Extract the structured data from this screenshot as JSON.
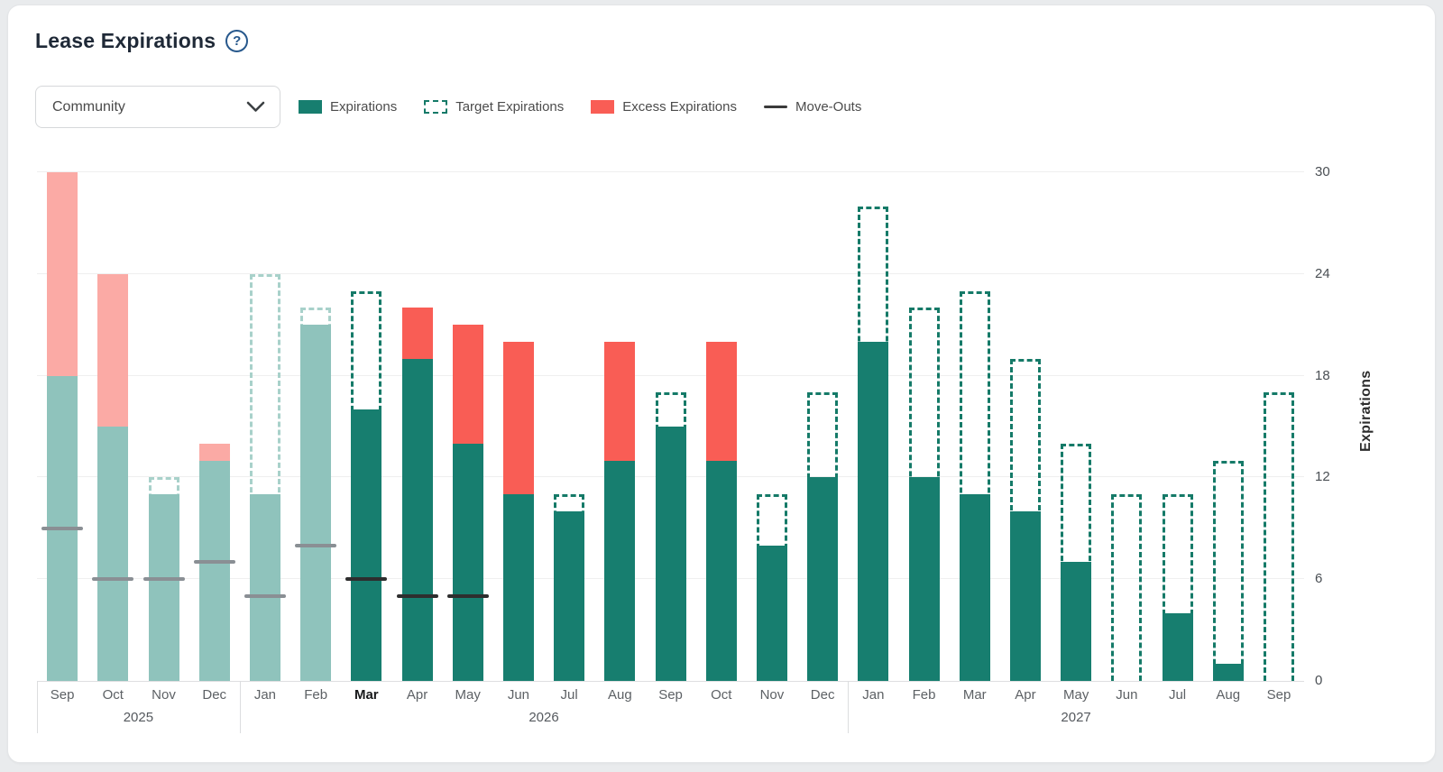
{
  "header": {
    "title": "Lease Expirations",
    "help_icon": "help-circle",
    "help_glyph": "?"
  },
  "filter": {
    "selected": "Community"
  },
  "legend": [
    {
      "id": "expirations",
      "label": "Expirations",
      "swatch": "solid-teal"
    },
    {
      "id": "target-expirations",
      "label": "Target Expirations",
      "swatch": "dashed-teal"
    },
    {
      "id": "excess-expirations",
      "label": "Excess Expirations",
      "swatch": "solid-red"
    },
    {
      "id": "move-outs",
      "label": "Move-Outs",
      "swatch": "dark-line"
    }
  ],
  "colors": {
    "teal": "#177e6f",
    "teal_faded": "#8fc3bc",
    "red": "#f95d55",
    "red_faded": "#fbaaa5",
    "target_dash": "#157a68",
    "target_dash_faded": "#a8d1ca",
    "moveout_active": "#2e2e2e",
    "moveout_past": "#8a8f94",
    "gridline": "#efefef",
    "title_text": "#1f2937",
    "help_icon_navy": "#27588c"
  },
  "chart_data": {
    "type": "bar",
    "title": "Lease Expirations",
    "ylabel": "Expirations",
    "yticks": [
      0,
      6,
      12,
      18,
      24,
      30
    ],
    "ylim": [
      0,
      31
    ],
    "grid": true,
    "legend_position": "top",
    "current_month": "Mar 2026",
    "x_groups": [
      {
        "year": "2025",
        "months": 4
      },
      {
        "year": "2026",
        "months": 12
      },
      {
        "year": "2027",
        "months": 9
      }
    ],
    "months": [
      {
        "label": "Sep",
        "year": 2025,
        "expirations": 30,
        "target": 18,
        "excess": 12,
        "move_outs": 9,
        "state": "past"
      },
      {
        "label": "Oct",
        "year": 2025,
        "expirations": 24,
        "target": 15,
        "excess": 9,
        "move_outs": 6,
        "state": "past"
      },
      {
        "label": "Nov",
        "year": 2025,
        "expirations": 11,
        "target": 12,
        "excess": 0,
        "move_outs": 6,
        "state": "past"
      },
      {
        "label": "Dec",
        "year": 2025,
        "expirations": 14,
        "target": 13,
        "excess": 1,
        "move_outs": 7,
        "state": "past"
      },
      {
        "label": "Jan",
        "year": 2026,
        "expirations": 11,
        "target": 24,
        "excess": 0,
        "move_outs": 5,
        "state": "past"
      },
      {
        "label": "Feb",
        "year": 2026,
        "expirations": 21,
        "target": 22,
        "excess": 0,
        "move_outs": 8,
        "state": "past"
      },
      {
        "label": "Mar",
        "year": 2026,
        "expirations": 16,
        "target": 23,
        "excess": 0,
        "move_outs": 6,
        "state": "current"
      },
      {
        "label": "Apr",
        "year": 2026,
        "expirations": 22,
        "target": 19,
        "excess": 3,
        "move_outs": 5,
        "state": "future"
      },
      {
        "label": "May",
        "year": 2026,
        "expirations": 21,
        "target": 14,
        "excess": 7,
        "move_outs": 5,
        "state": "future"
      },
      {
        "label": "Jun",
        "year": 2026,
        "expirations": 20,
        "target": 11,
        "excess": 9,
        "move_outs": null,
        "state": "future"
      },
      {
        "label": "Jul",
        "year": 2026,
        "expirations": 10,
        "target": 11,
        "excess": 0,
        "move_outs": null,
        "state": "future"
      },
      {
        "label": "Aug",
        "year": 2026,
        "expirations": 20,
        "target": 13,
        "excess": 7,
        "move_outs": null,
        "state": "future"
      },
      {
        "label": "Sep",
        "year": 2026,
        "expirations": 15,
        "target": 17,
        "excess": 0,
        "move_outs": null,
        "state": "future"
      },
      {
        "label": "Oct",
        "year": 2026,
        "expirations": 20,
        "target": 13,
        "excess": 7,
        "move_outs": null,
        "state": "future"
      },
      {
        "label": "Nov",
        "year": 2026,
        "expirations": 8,
        "target": 11,
        "excess": 0,
        "move_outs": null,
        "state": "future"
      },
      {
        "label": "Dec",
        "year": 2026,
        "expirations": 12,
        "target": 17,
        "excess": 0,
        "move_outs": null,
        "state": "future"
      },
      {
        "label": "Jan",
        "year": 2027,
        "expirations": 20,
        "target": 28,
        "excess": 0,
        "move_outs": null,
        "state": "future"
      },
      {
        "label": "Feb",
        "year": 2027,
        "expirations": 12,
        "target": 22,
        "excess": 0,
        "move_outs": null,
        "state": "future"
      },
      {
        "label": "Mar",
        "year": 2027,
        "expirations": 11,
        "target": 23,
        "excess": 0,
        "move_outs": null,
        "state": "future"
      },
      {
        "label": "Apr",
        "year": 2027,
        "expirations": 10,
        "target": 19,
        "excess": 0,
        "move_outs": null,
        "state": "future"
      },
      {
        "label": "May",
        "year": 2027,
        "expirations": 7,
        "target": 14,
        "excess": 0,
        "move_outs": null,
        "state": "future"
      },
      {
        "label": "Jun",
        "year": 2027,
        "expirations": 0,
        "target": 11,
        "excess": 0,
        "move_outs": null,
        "state": "future"
      },
      {
        "label": "Jul",
        "year": 2027,
        "expirations": 4,
        "target": 11,
        "excess": 0,
        "move_outs": null,
        "state": "future"
      },
      {
        "label": "Aug",
        "year": 2027,
        "expirations": 1,
        "target": 13,
        "excess": 0,
        "move_outs": null,
        "state": "future"
      },
      {
        "label": "Sep",
        "year": 2027,
        "expirations": 0,
        "target": 17,
        "excess": 0,
        "move_outs": null,
        "state": "future"
      }
    ]
  }
}
